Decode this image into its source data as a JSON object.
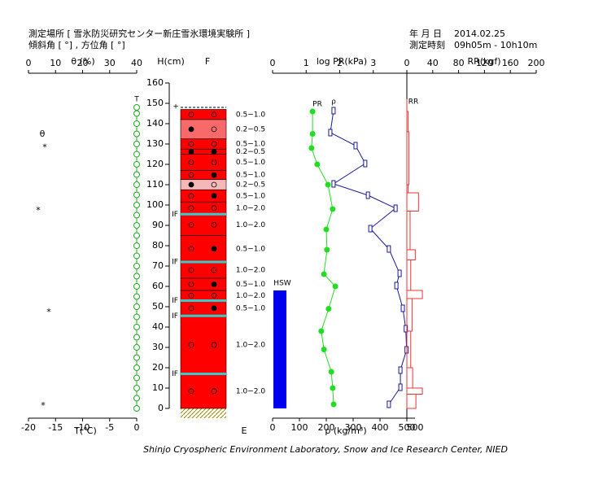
{
  "header": {
    "site": "測定場所 [ 雪氷防災研究センター新庄雪氷環境実験所 ]",
    "slope": "傾斜角 [ °] , 方位角 [ °]",
    "date_label": "年 月 日",
    "date": "2014.02.25",
    "time_label": "測定時刻",
    "time": "09h05m - 10h10m"
  },
  "footer": "Shinjo Cryospheric Environment Laboratory, Snow and Ice Research Center, NIED",
  "theta_axis": {
    "label": "θ (%)",
    "lim": [
      0,
      40
    ],
    "ticks": [
      0,
      10,
      20,
      30,
      40
    ]
  },
  "temp_axis": {
    "label": "T(℃)",
    "lim": [
      -20,
      0
    ],
    "ticks": [
      -20,
      -15,
      -10,
      -5,
      0
    ]
  },
  "height_axis": {
    "label": "H(cm)",
    "lim": [
      0,
      160
    ],
    "ticks": [
      0,
      10,
      20,
      30,
      40,
      50,
      60,
      70,
      80,
      90,
      100,
      110,
      120,
      130,
      140,
      150,
      160
    ]
  },
  "hardness_top_label": "F",
  "hardness_bottom_label": "E",
  "pr_axis": {
    "label": "log PR(kPa)",
    "lim": [
      0,
      4
    ],
    "ticks": [
      0,
      1,
      2,
      3
    ]
  },
  "rr_axis": {
    "label": "RR(kgf)",
    "lim": [
      0,
      200
    ],
    "ticks": [
      0,
      40,
      80,
      120,
      160,
      200
    ],
    "bottom_label": "500"
  },
  "rho_axis": {
    "label": "ρ (kg/m³)",
    "lim": [
      0,
      500
    ],
    "ticks": [
      0,
      100,
      200,
      300,
      400,
      500
    ]
  },
  "temperature": {
    "label": "T",
    "color": "#22aa22",
    "heights": [
      0,
      5,
      10,
      15,
      20,
      25,
      30,
      35,
      40,
      45,
      50,
      55,
      60,
      65,
      70,
      75,
      80,
      85,
      90,
      95,
      100,
      105,
      110,
      115,
      120,
      125,
      130,
      135,
      140,
      145,
      148
    ],
    "values": [
      0,
      0,
      0,
      0,
      0,
      0,
      0,
      0,
      0,
      0,
      0,
      0,
      0,
      0,
      0,
      0,
      0,
      0,
      0,
      0,
      0,
      0,
      0,
      0,
      0,
      0,
      0,
      0,
      0,
      0,
      0
    ]
  },
  "theta": {
    "label": "θ",
    "symbol": "*",
    "heights": [
      129,
      98,
      48,
      2
    ],
    "values": [
      6,
      3.6,
      7.5,
      5.4
    ]
  },
  "snow_surface": 148,
  "layers": [
    {
      "bottom": 142,
      "top": 147,
      "hardness": "0.5−1.0",
      "color": "#ff0000",
      "grains": [
        "open",
        "open"
      ]
    },
    {
      "bottom": 132.5,
      "top": 142,
      "hardness": "0.2−0.5",
      "color": "#f86a6a",
      "grains": [
        "filled",
        "open"
      ]
    },
    {
      "bottom": 127.5,
      "top": 132.5,
      "hardness": "0.5−1.0",
      "color": "#ff0000",
      "grains": [
        "open",
        "open"
      ]
    },
    {
      "bottom": 125,
      "top": 127.5,
      "hardness": "0.2−0.5",
      "color": "#ff0000",
      "grains": [
        "filled",
        "filled"
      ]
    },
    {
      "bottom": 117,
      "top": 125,
      "hardness": "0.5−1.0",
      "color": "#ff0000",
      "grains": [
        "open",
        "open"
      ]
    },
    {
      "bottom": 112.5,
      "top": 117,
      "hardness": "0.5−1.0",
      "color": "#ff0000",
      "grains": [
        "open",
        "filled"
      ]
    },
    {
      "bottom": 107.5,
      "top": 112.5,
      "hardness": "0.2−0.5",
      "color": "#f5b8b8",
      "grains": [
        "filled",
        "open"
      ]
    },
    {
      "bottom": 101.5,
      "top": 107.5,
      "hardness": "0.5−1.0",
      "color": "#ff0000",
      "grains": [
        "open",
        "filled"
      ]
    },
    {
      "bottom": 95.5,
      "top": 101.5,
      "hardness": "1.0−2.0",
      "color": "#ff0000",
      "grains": [
        "open",
        "open"
      ]
    },
    {
      "bottom": 85,
      "top": 95.5,
      "hardness": "1.0−2.0",
      "color": "#ff0000",
      "grains": [
        "open",
        "open"
      ]
    },
    {
      "bottom": 72,
      "top": 85,
      "hardness": "0.5−1.0",
      "color": "#ff0000",
      "grains": [
        "open",
        "filled"
      ]
    },
    {
      "bottom": 64,
      "top": 72,
      "hardness": "1.0−2.0",
      "color": "#ff0000",
      "grains": [
        "open",
        "open"
      ]
    },
    {
      "bottom": 58,
      "top": 64,
      "hardness": "0.5−1.0",
      "color": "#ff0000",
      "grains": [
        "open",
        "filled"
      ]
    },
    {
      "bottom": 53,
      "top": 58,
      "hardness": "1.0−2.0",
      "color": "#ff0000",
      "grains": [
        "open",
        "open"
      ]
    },
    {
      "bottom": 45.5,
      "top": 53,
      "hardness": "0.5−1.0",
      "color": "#ff0000",
      "grains": [
        "open",
        "filled"
      ]
    },
    {
      "bottom": 17,
      "top": 45.5,
      "hardness": "1.0−2.0",
      "color": "#ff0000",
      "grains": [
        "open",
        "open"
      ]
    },
    {
      "bottom": 0,
      "top": 17,
      "hardness": "1.0−2.0",
      "color": "#ff0000",
      "grains": [
        "open",
        "open"
      ]
    }
  ],
  "ice_films": {
    "label": "IF",
    "color": "#33cccc",
    "heights": [
      95.5,
      72,
      53,
      45.5,
      17
    ]
  },
  "pr": {
    "label": "PR",
    "color": "#22dd22",
    "heights": [
      146,
      135,
      128,
      120,
      110,
      98,
      88,
      78,
      66,
      60,
      49,
      38,
      29,
      18,
      10,
      2
    ],
    "values": [
      1.19,
      1.19,
      1.16,
      1.33,
      1.65,
      1.79,
      1.6,
      1.62,
      1.53,
      1.87,
      1.67,
      1.45,
      1.53,
      1.75,
      1.79,
      1.82
    ]
  },
  "density": {
    "label": "ρ",
    "color": "#1a1a99",
    "heights": [
      146.4,
      135.6,
      129.2,
      120.4,
      110.4,
      104.8,
      98.4,
      88.4,
      78.4,
      66.4,
      60.4,
      49.2,
      39.2,
      28.8,
      18.8,
      10.4,
      2
    ],
    "values": [
      227,
      215,
      309,
      345,
      227,
      355,
      458,
      364,
      433,
      473,
      461,
      485,
      496,
      499,
      476,
      476,
      433
    ]
  },
  "rr": {
    "label": "RR",
    "color": "#ee3333",
    "bottoms": [
      136,
      110,
      106,
      97,
      78,
      73,
      58,
      54,
      38,
      20,
      10,
      7,
      0
    ],
    "tops": [
      146,
      136,
      110,
      106,
      97,
      78,
      73,
      58,
      54,
      38,
      20,
      10,
      7
    ],
    "values": [
      2,
      3,
      2,
      18,
      5,
      13,
      6,
      24,
      8,
      6,
      9,
      24,
      14
    ]
  },
  "hsw": {
    "label": "HSW",
    "color": "#0000ee",
    "value": 58
  }
}
